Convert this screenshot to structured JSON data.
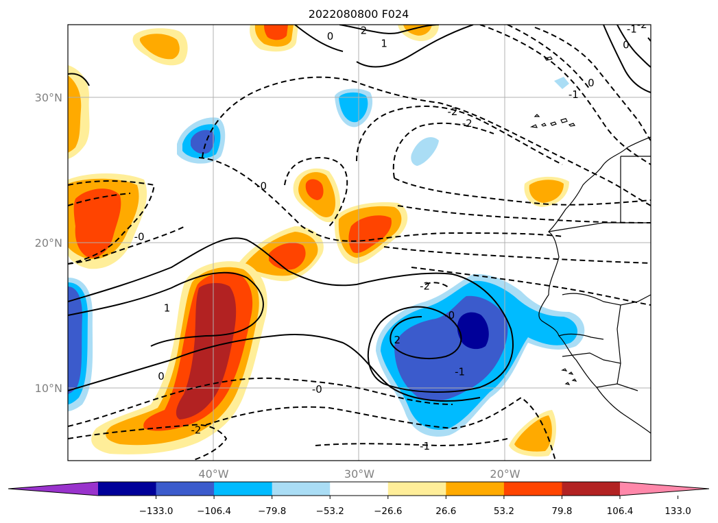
{
  "map": {
    "title": "2022080800 F024",
    "lon_ticks": [
      {
        "label": "40°W",
        "lon": -40
      },
      {
        "label": "30°W",
        "lon": -30
      },
      {
        "label": "20°W",
        "lon": -20
      }
    ],
    "lat_ticks": [
      {
        "label": "30°N",
        "lat": 30
      },
      {
        "label": "20°N",
        "lat": 20
      },
      {
        "label": "10°N",
        "lat": 10
      }
    ],
    "extent": {
      "lon_min": -50,
      "lon_max": -10,
      "lat_min": 5,
      "lat_max": 35
    },
    "gridlines": true
  },
  "colorbar": {
    "orientation": "horizontal",
    "extend": "both",
    "colors": [
      "#9933cc",
      "#000099",
      "#3b5bcc",
      "#00bbff",
      "#aaddf5",
      "#ffffff",
      "#ffee99",
      "#ffaa00",
      "#ff4400",
      "#b22222",
      "#ff88aa"
    ],
    "tick_labels": [
      "−133.0",
      "−106.4",
      "−79.8",
      "−53.2",
      "−26.6",
      "26.6",
      "53.2",
      "79.8",
      "106.4",
      "133.0"
    ]
  },
  "contour_labels": [
    {
      "text": "2",
      "lon": -29.7,
      "lat": 34.6
    },
    {
      "text": "1",
      "lon": -28.3,
      "lat": 33.7
    },
    {
      "text": "0",
      "lon": -32.0,
      "lat": 34.2
    },
    {
      "text": "-2",
      "lon": -23.6,
      "lat": 29.0
    },
    {
      "text": "-2",
      "lon": -22.6,
      "lat": 28.2
    },
    {
      "text": "-1",
      "lon": -15.3,
      "lat": 30.2
    },
    {
      "text": "0",
      "lon": -14.1,
      "lat": 31.0
    },
    {
      "text": "0",
      "lon": -11.7,
      "lat": 33.6
    },
    {
      "text": "-1",
      "lon": -11.3,
      "lat": 34.7
    },
    {
      "text": "-2",
      "lon": -10.6,
      "lat": 35.0
    },
    {
      "text": "-0",
      "lon": -36.7,
      "lat": 23.9
    },
    {
      "text": "-0",
      "lon": -45.1,
      "lat": 20.4
    },
    {
      "text": "1",
      "lon": -43.2,
      "lat": 15.5
    },
    {
      "text": "0",
      "lon": -43.6,
      "lat": 10.8
    },
    {
      "text": "-0",
      "lon": -32.9,
      "lat": 9.9
    },
    {
      "text": "-2",
      "lon": -41.2,
      "lat": 7.1
    },
    {
      "text": "-1",
      "lon": -25.5,
      "lat": 6.0
    },
    {
      "text": "-1",
      "lon": -23.1,
      "lat": 11.1
    },
    {
      "text": "2",
      "lon": -27.4,
      "lat": 13.3
    },
    {
      "text": "-2",
      "lon": -25.5,
      "lat": 17.0
    },
    {
      "text": "-0",
      "lon": -23.8,
      "lat": 15.0
    }
  ]
}
